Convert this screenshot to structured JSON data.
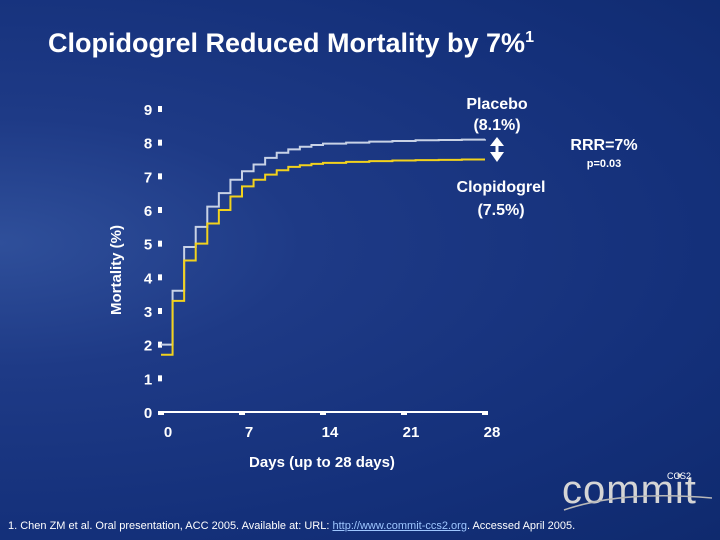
{
  "title": {
    "main": "Clopidogrel Reduced Mortality by 7%",
    "sup": "1"
  },
  "chart_data": {
    "type": "line",
    "xlabel": "Days (up to 28 days)",
    "ylabel": "Mortality (%)",
    "x_ticks": [
      0,
      7,
      14,
      21,
      28
    ],
    "y_ticks": [
      0,
      1,
      2,
      3,
      4,
      5,
      6,
      7,
      8,
      9
    ],
    "xlim": [
      0,
      28
    ],
    "ylim": [
      0,
      9
    ],
    "colors": {
      "placebo": "#c8d2e6",
      "clopidogrel": "#f2d21d"
    },
    "series": [
      {
        "key": "placebo",
        "x": [
          0,
          1,
          2,
          3,
          4,
          5,
          6,
          7,
          8,
          9,
          10,
          11,
          12,
          13,
          14,
          16,
          18,
          20,
          22,
          24,
          26,
          28
        ],
        "y": [
          2.0,
          3.6,
          4.9,
          5.5,
          6.1,
          6.5,
          6.9,
          7.15,
          7.35,
          7.55,
          7.7,
          7.8,
          7.88,
          7.93,
          7.97,
          8.0,
          8.03,
          8.05,
          8.07,
          8.08,
          8.09,
          8.1
        ]
      },
      {
        "key": "clopidogrel",
        "x": [
          0,
          1,
          2,
          3,
          4,
          5,
          6,
          7,
          8,
          9,
          10,
          11,
          12,
          13,
          14,
          16,
          18,
          20,
          22,
          24,
          26,
          28
        ],
        "y": [
          1.7,
          3.3,
          4.5,
          5.0,
          5.6,
          6.0,
          6.4,
          6.7,
          6.9,
          7.05,
          7.18,
          7.28,
          7.33,
          7.37,
          7.4,
          7.43,
          7.45,
          7.47,
          7.48,
          7.49,
          7.5,
          7.5
        ]
      }
    ],
    "annotations": {
      "placebo_label": "Placebo",
      "placebo_value": "(8.1%)",
      "clopidogrel_label": "Clopidogrel",
      "clopidogrel_value": "(7.5%)",
      "rrr": "RRR=7%",
      "p_value": "p=0.03"
    }
  },
  "footnote": {
    "before": "1. Chen ZM et al. Oral presentation, ACC 2005. Available at: URL: ",
    "link": "http://www.commit-ccs2.org",
    "after": ". Accessed April 2005."
  },
  "logo": {
    "text": "commit",
    "tag": "CCS2"
  }
}
